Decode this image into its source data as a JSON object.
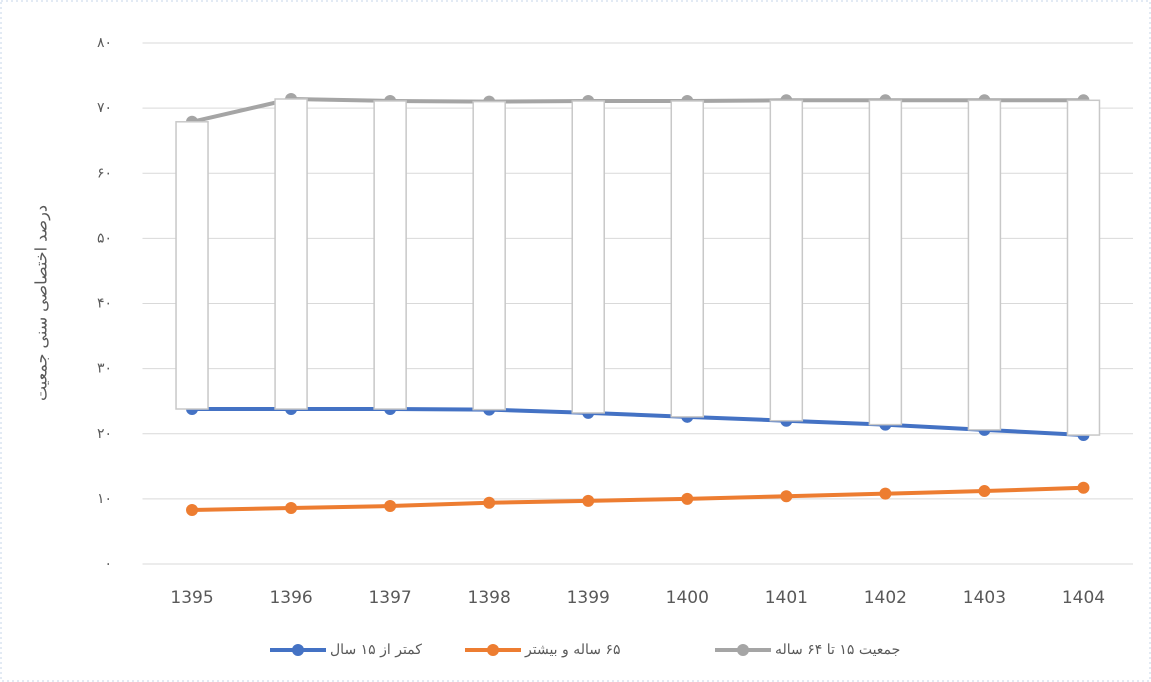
{
  "chart_data": {
    "type": "line",
    "y_label": "درصد اختصاصی سنی جمعیت",
    "categories": [
      "1395",
      "1396",
      "1397",
      "1398",
      "1399",
      "1400",
      "1401",
      "1402",
      "1403",
      "1404"
    ],
    "series": [
      {
        "name": "کمتر از ۱۵ سال",
        "color": "#4472c4",
        "values": [
          23.8,
          23.8,
          23.8,
          23.7,
          23.2,
          22.6,
          22.0,
          21.4,
          20.6,
          19.8
        ]
      },
      {
        "name": "۶۵ ساله و بیشتر",
        "color": "#ed7d31",
        "values": [
          8.3,
          8.6,
          8.9,
          9.4,
          9.7,
          10.0,
          10.4,
          10.8,
          11.2,
          11.7
        ]
      },
      {
        "name": "جمعیت ۱۵ تا ۶۴ ساله",
        "color": "#a5a5a5",
        "values": [
          67.9,
          71.4,
          71.1,
          71.0,
          71.1,
          71.1,
          71.2,
          71.2,
          71.2,
          71.2
        ]
      }
    ],
    "ylim": [
      0,
      80
    ],
    "yticks": [
      {
        "value": 0,
        "label": "۰"
      },
      {
        "value": 10,
        "label": "۱۰"
      },
      {
        "value": 20,
        "label": "۲۰"
      },
      {
        "value": 30,
        "label": "۳۰"
      },
      {
        "value": 40,
        "label": "۴۰"
      },
      {
        "value": 50,
        "label": "۵۰"
      },
      {
        "value": 60,
        "label": "۶۰"
      },
      {
        "value": 70,
        "label": "۷۰"
      },
      {
        "value": 80,
        "label": "۸۰"
      }
    ],
    "grid": true,
    "legend": "bottom"
  }
}
